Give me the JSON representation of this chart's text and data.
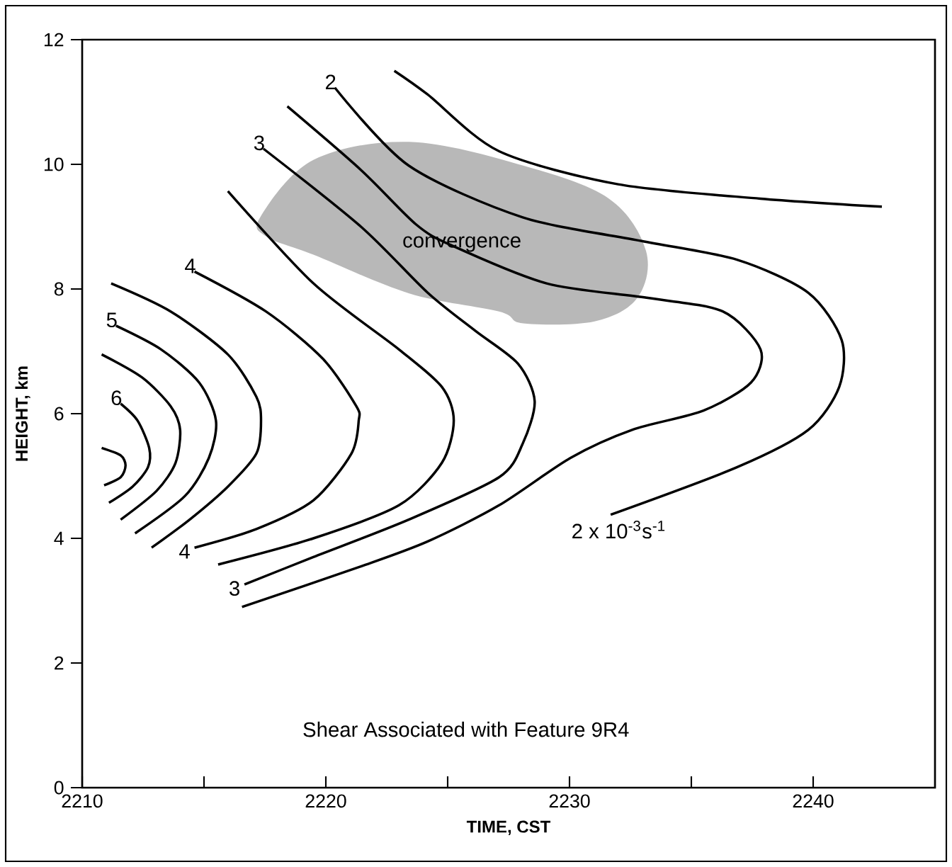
{
  "chart_data": {
    "type": "line",
    "xlabel": "TIME, CST",
    "ylabel": "HEIGHT, km",
    "xlim": [
      2210,
      2245
    ],
    "ylim": [
      0,
      12
    ],
    "xticks": [
      2210,
      {
        "value": 2215,
        "label": null
      },
      2220,
      {
        "value": 2225,
        "label": null
      },
      2230,
      {
        "value": 2235,
        "label": null
      },
      2240
    ],
    "yticks": [
      0,
      2,
      4,
      6,
      8,
      10,
      12
    ],
    "grid": false,
    "marker": "none",
    "line_style": "solid",
    "series": [
      {
        "type": "area",
        "color": "#b8b8b8",
        "x": [
          2217.32,
          2219.49,
          2223.42,
          2228.1,
          2231.62,
          2233.14,
          2232.79,
          2231.03,
          2228.1,
          2227.11,
          2223.42,
          2219.49,
          2217.56
        ],
        "values": [
          9.16,
          10.07,
          10.36,
          9.98,
          9.45,
          8.61,
          7.86,
          7.48,
          7.45,
          7.64,
          7.93,
          8.55,
          8.84
        ]
      },
      {
        "color": "#000000",
        "x": [
          2222.81,
          2224.18,
          2227.11,
          2231.99,
          2237.84,
          2242.82
        ],
        "values": [
          11.5,
          11.12,
          10.21,
          9.68,
          9.45,
          9.32
        ]
      },
      {
        "color": "#000000",
        "x": [
          2220.37,
          2223.4,
          2228.08,
          2232.96,
          2236.87,
          2239.8,
          2241.17,
          2241.07,
          2239.8,
          2236.87,
          2231.69
        ],
        "values": [
          11.23,
          9.98,
          9.15,
          8.77,
          8.47,
          7.94,
          7.18,
          6.43,
          5.74,
          5.14,
          4.38
        ]
      },
      {
        "color": "#000000",
        "x": [
          2218.42,
          2221.44,
          2223.69,
          2225.16,
          2229.06,
          2233.16,
          2236.29,
          2237.84,
          2237.45,
          2235.5,
          2232.57,
          2230.04,
          2227.11,
          2224.18,
          2221.44,
          2216.56
        ],
        "values": [
          10.93,
          9.91,
          9.04,
          8.7,
          8.09,
          7.86,
          7.64,
          7.03,
          6.5,
          6.05,
          5.74,
          5.29,
          4.53,
          3.95,
          3.55,
          2.9
        ]
      },
      {
        "color": "#000000",
        "x": [
          2217.44,
          2221.44,
          2224.18,
          2226.13,
          2227.89,
          2228.57,
          2228.08,
          2227.11,
          2223.4,
          2219.49,
          2216.66
        ],
        "values": [
          10.25,
          9.0,
          7.94,
          7.33,
          6.8,
          6.2,
          5.52,
          4.98,
          4.3,
          3.7,
          3.26
        ]
      },
      {
        "color": "#000000",
        "x": [
          2215.98,
          2219.49,
          2223.0,
          2224.76,
          2225.25,
          2224.76,
          2223.0,
          2219.49,
          2215.58
        ],
        "values": [
          9.57,
          8.09,
          7.03,
          6.43,
          5.89,
          5.21,
          4.53,
          4.0,
          3.58
        ]
      },
      {
        "color": "#000000",
        "x": [
          2214.61,
          2217.54,
          2219.88,
          2221.25,
          2221.35,
          2221.05,
          2219.49,
          2217.15,
          2214.61
        ],
        "values": [
          8.28,
          7.64,
          6.88,
          6.12,
          5.89,
          5.36,
          4.61,
          4.15,
          3.85
        ]
      },
      {
        "color": "#000000",
        "x": [
          2211.19,
          2213.63,
          2215.98,
          2217.15,
          2217.34,
          2217.15,
          2215.98,
          2214.41,
          2212.85
        ],
        "values": [
          8.09,
          7.64,
          6.95,
          6.27,
          5.89,
          5.36,
          4.83,
          4.3,
          3.85
        ]
      },
      {
        "color": "#000000",
        "x": [
          2211.39,
          2213.24,
          2214.8,
          2215.49,
          2215.2,
          2214.22,
          2212.17
        ],
        "values": [
          7.41,
          7.03,
          6.5,
          5.89,
          5.29,
          4.68,
          4.08
        ]
      },
      {
        "color": "#000000",
        "x": [
          2210.8,
          2212.46,
          2213.63,
          2214.02,
          2213.83,
          2213.05,
          2211.58
        ],
        "values": [
          6.95,
          6.58,
          6.12,
          5.74,
          5.21,
          4.76,
          4.3
        ]
      },
      {
        "color": "#000000",
        "x": [
          2211.58,
          2212.27,
          2212.75,
          2212.7,
          2212.07,
          2211.1
        ],
        "values": [
          6.16,
          5.89,
          5.45,
          5.14,
          4.83,
          4.57
        ]
      },
      {
        "color": "#000000",
        "x": [
          2210.8,
          2211.58,
          2211.78,
          2211.58,
          2210.9
        ],
        "values": [
          5.45,
          5.33,
          5.17,
          4.98,
          4.85
        ]
      }
    ],
    "annotations": [
      {
        "text": "2",
        "x": 2220.37,
        "y": 11.23
      },
      {
        "text": "3",
        "x": 2217.44,
        "y": 10.25
      },
      {
        "text": "4",
        "x": 2214.61,
        "y": 8.28
      },
      {
        "text": "5",
        "x": 2211.39,
        "y": 7.41
      },
      {
        "text": "6",
        "x": 2211.58,
        "y": 6.16
      },
      {
        "text": "4",
        "x": 2214.61,
        "y": 3.85
      },
      {
        "text": "3",
        "x": 2216.66,
        "y": 3.26
      },
      {
        "text": "2 x 10$^{-3}$s$^{-1}$",
        "x": 2231.69,
        "y": 4.38
      },
      "convergence",
      "Shear Associated with Feature 9R4"
    ]
  }
}
